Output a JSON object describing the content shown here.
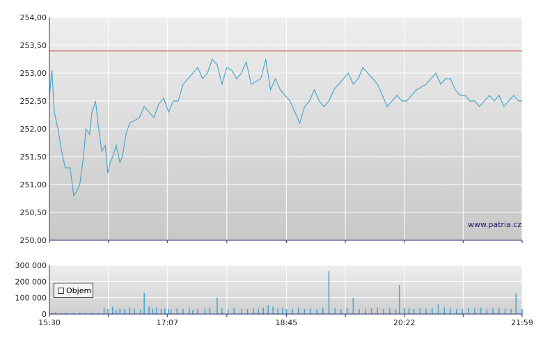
{
  "colors": {
    "price_line": "#4ea6cc",
    "reference_line": "#c44a4a",
    "volume_bars": "#4ea6cc",
    "grid": "#ffffff",
    "panel_top": "#eeeeee",
    "panel_bottom": "#c8c8c8",
    "axis": "#2a2a7a"
  },
  "watermark": "www.patria.cz",
  "legend": {
    "label": "Objem"
  },
  "chart_data": [
    {
      "type": "line",
      "title": "",
      "xlabel": "",
      "ylabel": "",
      "ylim": [
        250.0,
        254.0
      ],
      "y_ticks": [
        "254,00",
        "253,50",
        "253,00",
        "252,50",
        "252,00",
        "251,50",
        "251,00",
        "250,50",
        "250,00"
      ],
      "y_tick_values": [
        254.0,
        253.5,
        253.0,
        252.5,
        252.0,
        251.5,
        251.0,
        250.5,
        250.0
      ],
      "reference_level": 253.4,
      "x_range": [
        "15:30",
        "21:59"
      ],
      "grid": true,
      "series": [
        {
          "x": [
            "15:30",
            "15:32",
            "15:34",
            "15:37",
            "15:40",
            "15:43",
            "15:47",
            "15:50",
            "15:53",
            "15:55",
            "15:58",
            "16:00",
            "16:03",
            "16:05",
            "16:08",
            "16:10",
            "16:13",
            "16:16",
            "16:18",
            "16:20",
            "16:22",
            "16:25",
            "16:28",
            "16:30",
            "16:33",
            "16:36",
            "16:40",
            "16:44",
            "16:48",
            "16:52",
            "16:56",
            "17:00",
            "17:04",
            "17:08",
            "17:12",
            "17:16",
            "17:20",
            "17:24",
            "17:28",
            "17:32",
            "17:36",
            "17:40",
            "17:44",
            "17:48",
            "17:52",
            "17:56",
            "18:00",
            "18:04",
            "18:08",
            "18:12",
            "18:16",
            "18:20",
            "18:24",
            "18:28",
            "18:32",
            "18:36",
            "18:40",
            "18:44",
            "18:48",
            "18:52",
            "18:56",
            "19:00",
            "19:04",
            "19:08",
            "19:12",
            "19:16",
            "19:20",
            "19:24",
            "19:28",
            "19:32",
            "19:36",
            "19:40",
            "19:44",
            "19:48",
            "19:52",
            "19:56",
            "20:00",
            "20:04",
            "20:08",
            "20:12",
            "20:16",
            "20:20",
            "20:24",
            "20:28",
            "20:32",
            "20:36",
            "20:40",
            "20:44",
            "20:48",
            "20:52",
            "20:56",
            "21:00",
            "21:04",
            "21:08",
            "21:12",
            "21:16",
            "21:20",
            "21:24",
            "21:28",
            "21:32",
            "21:36",
            "21:40",
            "21:44",
            "21:48",
            "21:52",
            "21:56",
            "21:59"
          ],
          "values": [
            252.6,
            253.05,
            252.3,
            252.0,
            251.6,
            251.3,
            251.3,
            250.8,
            250.9,
            251.0,
            251.5,
            252.0,
            251.9,
            252.3,
            252.5,
            252.1,
            251.6,
            251.7,
            251.2,
            251.4,
            251.5,
            251.7,
            251.4,
            251.5,
            251.9,
            252.1,
            252.15,
            252.2,
            252.4,
            252.3,
            252.2,
            252.45,
            252.55,
            252.3,
            252.5,
            252.5,
            252.8,
            252.9,
            253.0,
            253.1,
            252.9,
            253.0,
            253.25,
            253.15,
            252.8,
            253.1,
            253.05,
            252.9,
            253.0,
            253.2,
            252.8,
            252.85,
            252.9,
            253.25,
            252.7,
            252.9,
            252.7,
            252.6,
            252.5,
            252.3,
            252.1,
            252.4,
            252.5,
            252.7,
            252.5,
            252.4,
            252.5,
            252.7,
            252.8,
            252.9,
            253.0,
            252.8,
            252.9,
            253.1,
            253.0,
            252.9,
            252.8,
            252.6,
            252.4,
            252.5,
            252.6,
            252.5,
            252.5,
            252.6,
            252.7,
            252.75,
            252.8,
            252.9,
            253.0,
            252.8,
            252.9,
            252.9,
            252.7,
            252.6,
            252.6,
            252.5,
            252.5,
            252.4,
            252.5,
            252.6,
            252.5,
            252.6,
            252.4,
            252.5,
            252.6,
            252.5,
            252.5
          ]
        }
      ]
    },
    {
      "type": "bar",
      "title": "",
      "ylim": [
        0,
        300000
      ],
      "y_ticks": [
        "300 000",
        "200 000",
        "100 000",
        "0"
      ],
      "y_tick_values": [
        300000,
        200000,
        100000,
        0
      ],
      "x_ticks": [
        "15:30",
        "17:07",
        "18:45",
        "20:22",
        "21:59"
      ],
      "x_tick_minutes": [
        0,
        97,
        195,
        292,
        389
      ],
      "series": [
        {
          "name": "Objem",
          "minutes": [
            2,
            5,
            10,
            14,
            20,
            25,
            30,
            35,
            40,
            45,
            48,
            52,
            55,
            58,
            62,
            66,
            70,
            75,
            78,
            82,
            85,
            88,
            92,
            95,
            98,
            100,
            105,
            110,
            115,
            118,
            122,
            128,
            132,
            138,
            142,
            147,
            152,
            158,
            163,
            168,
            172,
            176,
            180,
            184,
            188,
            192,
            195,
            200,
            205,
            210,
            215,
            220,
            225,
            230,
            235,
            240,
            245,
            250,
            255,
            260,
            265,
            270,
            275,
            280,
            285,
            288,
            292,
            296,
            300,
            305,
            310,
            315,
            320,
            325,
            330,
            335,
            340,
            345,
            350,
            355,
            360,
            365,
            370,
            375,
            380,
            384,
            389
          ],
          "values": [
            8000,
            12000,
            6000,
            9000,
            7000,
            10000,
            8000,
            6000,
            5000,
            40000,
            30000,
            45000,
            25000,
            35000,
            30000,
            40000,
            32000,
            28000,
            130000,
            45000,
            35000,
            40000,
            30000,
            35000,
            30000,
            28000,
            35000,
            30000,
            40000,
            25000,
            30000,
            35000,
            40000,
            100000,
            35000,
            30000,
            38000,
            32000,
            30000,
            35000,
            30000,
            40000,
            55000,
            45000,
            35000,
            38000,
            30000,
            32000,
            40000,
            30000,
            35000,
            28000,
            40000,
            265000,
            35000,
            30000,
            38000,
            100000,
            30000,
            32000,
            35000,
            40000,
            30000,
            35000,
            30000,
            180000,
            40000,
            35000,
            30000,
            38000,
            32000,
            35000,
            60000,
            40000,
            35000,
            30000,
            32000,
            38000,
            35000,
            40000,
            30000,
            35000,
            38000,
            32000,
            30000,
            130000,
            30000
          ]
        }
      ]
    }
  ]
}
